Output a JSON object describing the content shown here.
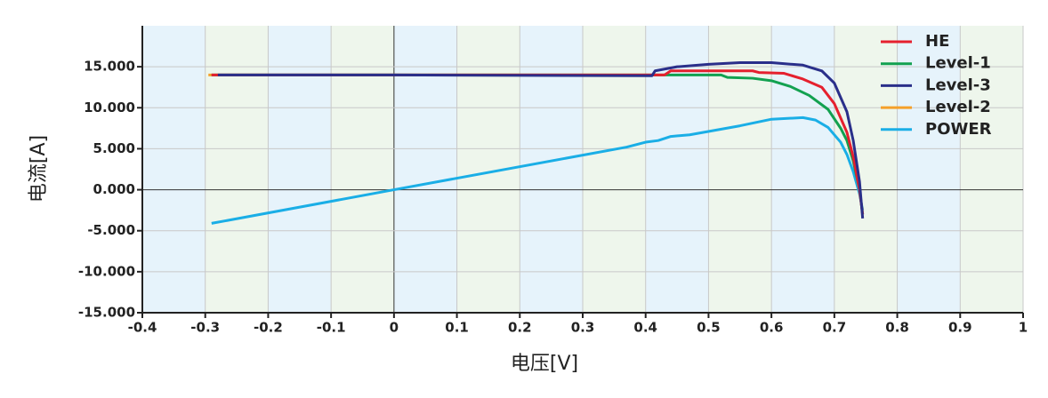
{
  "chart_data": {
    "type": "line",
    "x_label": "电压[V]",
    "y_label": "电流[A]",
    "xlim": [
      -0.4,
      1
    ],
    "xticks": [
      -0.4,
      -0.3,
      -0.2,
      -0.1,
      0,
      0.1,
      0.2,
      0.3,
      0.4,
      0.5,
      0.6,
      0.7,
      0.8,
      0.9,
      1
    ],
    "ylim": [
      -15,
      20
    ],
    "yticks": [
      {
        "value": -15,
        "label": "-15.000"
      },
      {
        "value": -10,
        "label": "-10.000"
      },
      {
        "value": -5,
        "label": "-5.000"
      },
      {
        "value": 0,
        "label": "0.000"
      },
      {
        "value": 5,
        "label": "5.000"
      },
      {
        "value": 10,
        "label": "10.000"
      },
      {
        "value": 15,
        "label": "15.000"
      }
    ],
    "grid": true,
    "legend": "upper right",
    "series": [
      {
        "name": "HE",
        "color": "#e5202e",
        "x": [
          -0.29,
          0.0,
          0.43,
          0.44,
          0.57,
          0.58,
          0.62,
          0.65,
          0.68,
          0.7,
          0.72,
          0.73,
          0.74,
          0.745
        ],
        "values": [
          14.0,
          14.0,
          14.0,
          14.5,
          14.5,
          14.3,
          14.2,
          13.5,
          12.5,
          10.5,
          7.0,
          4.0,
          0.0,
          -3.0
        ]
      },
      {
        "name": "Level-1",
        "color": "#12a150",
        "x": [
          -0.29,
          0.0,
          0.4,
          0.52,
          0.53,
          0.57,
          0.6,
          0.63,
          0.66,
          0.69,
          0.71,
          0.72,
          0.73,
          0.74,
          0.745
        ],
        "values": [
          14.0,
          14.0,
          14.0,
          14.0,
          13.7,
          13.6,
          13.3,
          12.6,
          11.5,
          9.8,
          7.5,
          6.0,
          3.5,
          0.0,
          -3.0
        ]
      },
      {
        "name": "Level-3",
        "color": "#2a2f8a",
        "x": [
          -0.28,
          0.0,
          0.41,
          0.415,
          0.45,
          0.5,
          0.55,
          0.6,
          0.65,
          0.68,
          0.7,
          0.72,
          0.73,
          0.74,
          0.745
        ],
        "values": [
          14.0,
          14.0,
          13.9,
          14.5,
          15.0,
          15.3,
          15.5,
          15.5,
          15.2,
          14.5,
          13.0,
          9.5,
          6.0,
          1.0,
          -3.5
        ]
      },
      {
        "name": "Level-2",
        "color": "#f5a02a",
        "x": [
          -0.295,
          0.0,
          0.43
        ],
        "values": [
          14.0,
          14.0,
          14.0
        ]
      },
      {
        "name": "POWER",
        "color": "#1aaee6",
        "x": [
          -0.29,
          0.0,
          0.37,
          0.4,
          0.42,
          0.44,
          0.47,
          0.55,
          0.6,
          0.65,
          0.67,
          0.69,
          0.71,
          0.72,
          0.73,
          0.74,
          0.745
        ],
        "values": [
          -4.1,
          0.0,
          5.2,
          5.8,
          6.0,
          6.5,
          6.7,
          7.8,
          8.6,
          8.8,
          8.5,
          7.6,
          5.8,
          4.3,
          2.2,
          -0.5,
          -2.5
        ]
      }
    ]
  }
}
